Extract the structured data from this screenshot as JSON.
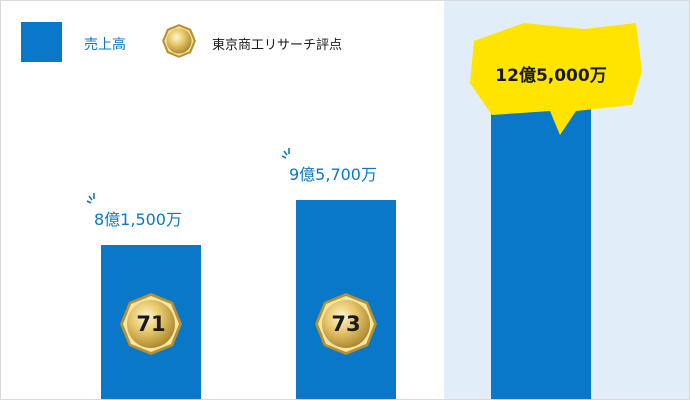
{
  "chart_data": {
    "type": "bar",
    "categories": [
      "",
      "",
      ""
    ],
    "series": [
      {
        "name": "売上高",
        "values": [
          8.15,
          9.57,
          12.5
        ],
        "labels": [
          "8億1,500万",
          "9億5,700万",
          "12億5,000万"
        ]
      }
    ],
    "scores": {
      "name": "東京商工リサーチ評点",
      "values": [
        "71",
        "73",
        ""
      ]
    },
    "legend": [
      "売上高",
      "東京商工リサーチ評点"
    ],
    "legend_placement": "top-left",
    "highlighted_category_index": 2,
    "grid": false,
    "colors": {
      "bar": "#0a78c8",
      "highlight": "#e1eef9",
      "bubble": "#ffe400",
      "medal": "#d8b85a"
    }
  },
  "icons": {
    "medal": "gold-medal-icon",
    "sparkle": "sparkle-icon"
  }
}
